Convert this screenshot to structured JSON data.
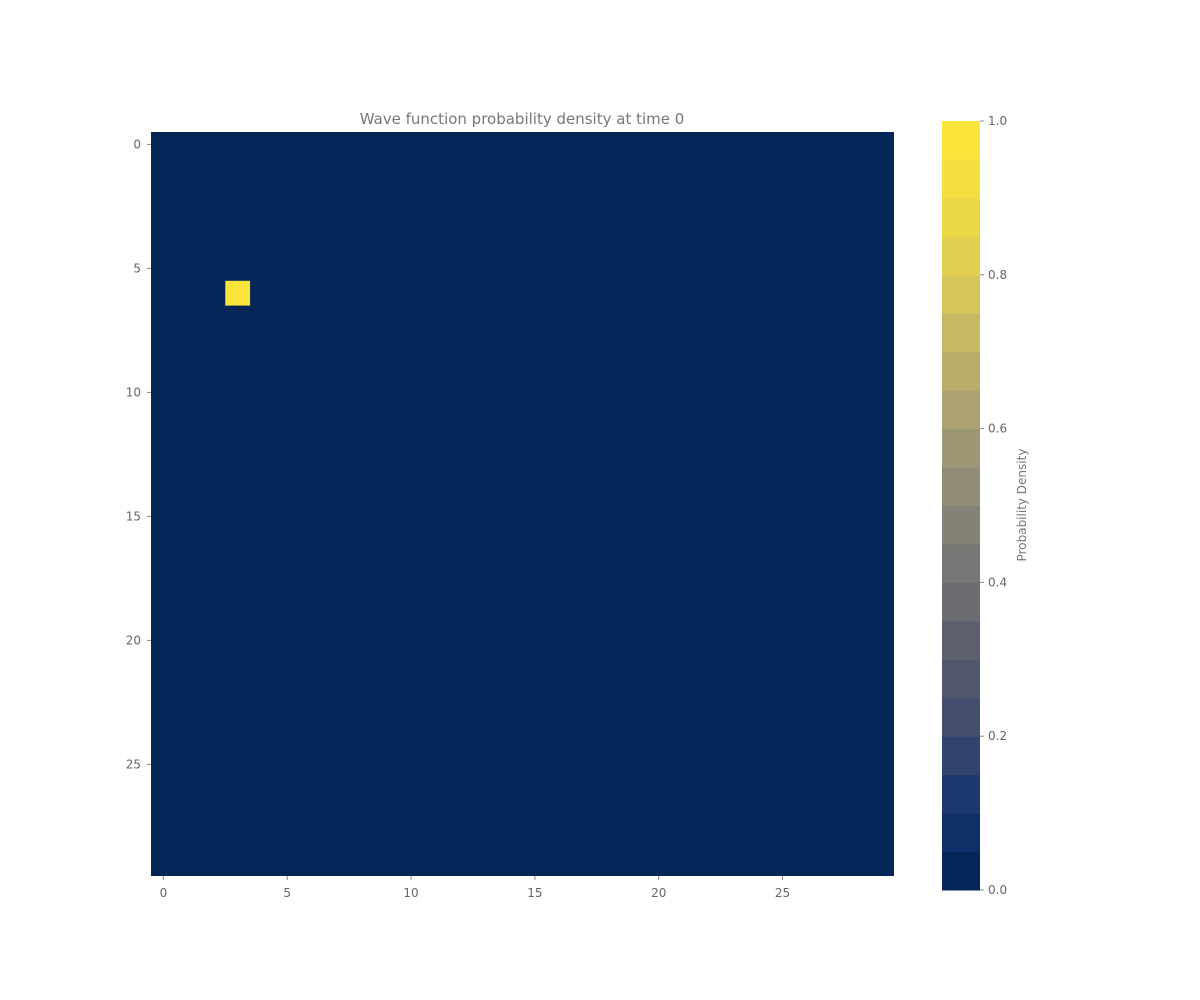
{
  "chart_data": {
    "type": "heatmap",
    "title": "Wave function probability density at time 0",
    "xlabel": "",
    "ylabel": "",
    "rows": 30,
    "cols": 30,
    "background_value": 0.0,
    "peaks": [
      {
        "row": 6,
        "col": 3,
        "value": 1.0
      }
    ],
    "x_ticks": [
      0,
      5,
      10,
      15,
      20,
      25
    ],
    "y_ticks": [
      0,
      5,
      10,
      15,
      20,
      25
    ],
    "grid": false,
    "colorbar": {
      "label": "Probability Density",
      "range": [
        0.0,
        1.0
      ],
      "ticks": [
        "0.0",
        "0.2",
        "0.4",
        "0.6",
        "0.8",
        "1.0"
      ],
      "levels": 20,
      "colormap": "cividis",
      "low_color": "#00224e",
      "high_color": "#fee838"
    }
  }
}
